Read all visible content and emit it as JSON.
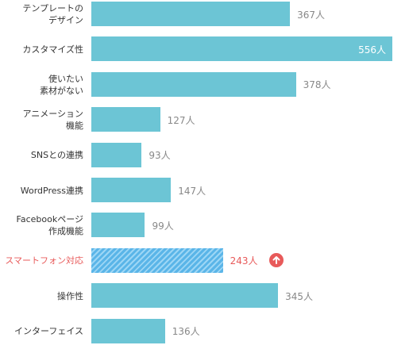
{
  "chart_data": {
    "type": "bar",
    "orientation": "horizontal",
    "unit": "人",
    "xlim": [
      0,
      556
    ],
    "categories": [
      "テンプレートの\nデザイン",
      "カスタマイズ性",
      "使いたい\n素材がない",
      "アニメーション\n機能",
      "SNSとの連携",
      "WordPress連携",
      "Facebookページ\n作成機能",
      "スマートフォン対応",
      "操作性",
      "インターフェイス"
    ],
    "values": [
      367,
      556,
      378,
      127,
      93,
      147,
      99,
      243,
      345,
      136
    ],
    "value_labels": [
      "367人",
      "556人",
      "378人",
      "127人",
      "93人",
      "147人",
      "99人",
      "243人",
      "345人",
      "136人"
    ],
    "highlight_index": 7,
    "highlight_icon": "arrow-up-circle-icon"
  },
  "colors": {
    "bar": "#6cc5d5",
    "highlight_bar": "#5ab5e8",
    "highlight_stripe": "#9cd6f5",
    "highlight_text": "#e85a5a",
    "label": "#333333",
    "value": "#888888"
  }
}
